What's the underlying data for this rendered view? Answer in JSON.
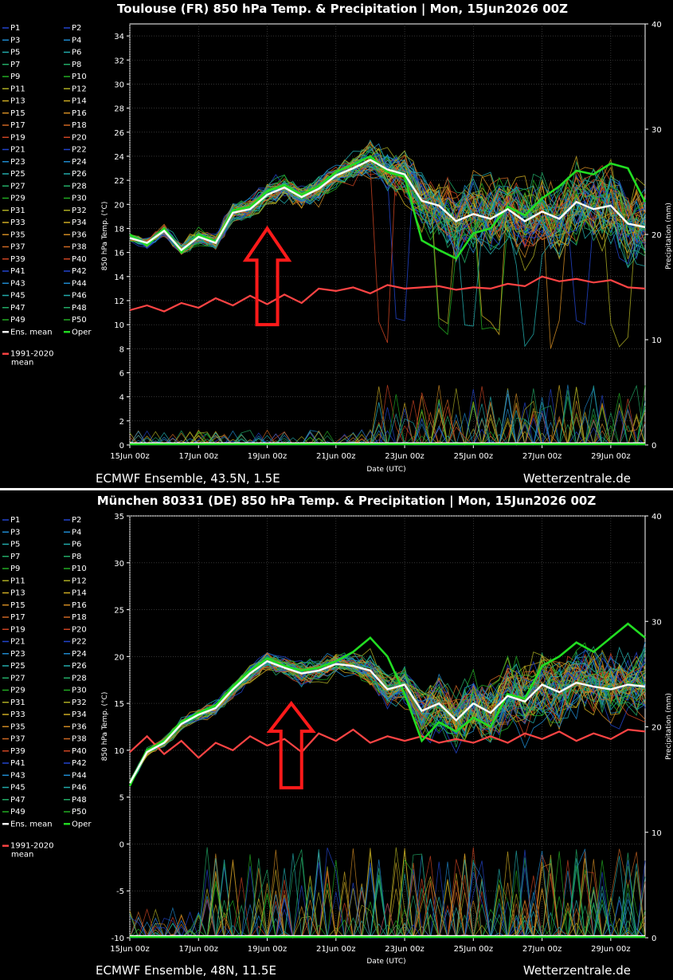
{
  "chart_data": [
    {
      "type": "line",
      "title": "Toulouse  (FR)  850 hPa Temp. & Precipitation | Mon, 15Jun2026 00Z",
      "xlabel": "Date (UTC)",
      "ylabel": "850 hPa Temp. (°C)",
      "y2label": "Precipitation (mm)",
      "ylim": [
        0,
        35
      ],
      "y2lim": [
        0,
        40
      ],
      "yticks": [
        0,
        2,
        4,
        6,
        8,
        10,
        12,
        14,
        16,
        18,
        20,
        22,
        24,
        26,
        28,
        30,
        32,
        34
      ],
      "y2ticks": [
        0,
        10,
        20,
        30,
        40
      ],
      "x_tick_labels": [
        "15Jun 00z",
        "17Jun 00z",
        "19Jun 00z",
        "21Jun 00z",
        "23Jun 00z",
        "25Jun 00z",
        "27Jun 00z",
        "29Jun 00z"
      ],
      "x_days": [
        0,
        15
      ],
      "footer_left": "ECMWF Ensemble, 43.5N, 1.5E",
      "footer_right": "Wetterzentrale.de",
      "annotation": {
        "type": "arrow-up",
        "color": "#ff1a1a",
        "x_day": 4.0,
        "y_from": 10,
        "y_to": 18
      },
      "members": {
        "count": 50,
        "spread": 1.0,
        "late_spread": 3.5,
        "drop_mean": 8,
        "drop_chance": 0.18
      },
      "series": [
        {
          "name": "Ens. mean",
          "color": "#ffffff",
          "x": [
            0,
            0.5,
            1,
            1.5,
            2,
            2.5,
            3,
            3.5,
            4,
            4.5,
            5,
            5.5,
            6,
            6.5,
            7,
            7.5,
            8,
            8.5,
            9,
            9.5,
            10,
            10.5,
            11,
            11.5,
            12,
            12.5,
            13,
            13.5,
            14,
            14.5,
            15
          ],
          "values": [
            17.2,
            16.8,
            17.8,
            16.2,
            17.3,
            16.8,
            19.3,
            19.6,
            20.8,
            21.4,
            20.6,
            21.3,
            22.4,
            23.0,
            23.7,
            22.9,
            22.5,
            20.3,
            19.9,
            18.6,
            19.2,
            18.8,
            19.6,
            18.6,
            19.4,
            18.8,
            20.2,
            19.6,
            19.9,
            18.4,
            18.1
          ]
        },
        {
          "name": "Oper",
          "color": "#22dd22",
          "x": [
            0,
            0.5,
            1,
            1.5,
            2,
            2.5,
            3,
            3.5,
            4,
            4.5,
            5,
            5.5,
            6,
            6.5,
            7,
            7.5,
            8,
            8.5,
            9,
            9.5,
            10,
            10.5,
            11,
            11.5,
            12,
            12.5,
            13,
            13.5,
            14,
            14.5,
            15
          ],
          "values": [
            17.5,
            16.6,
            18.0,
            16.0,
            17.5,
            16.9,
            19.5,
            19.8,
            21.1,
            21.6,
            20.8,
            21.5,
            22.7,
            23.3,
            24.0,
            22.7,
            22.3,
            17.0,
            16.2,
            15.5,
            17.6,
            18.0,
            19.8,
            19.1,
            20.5,
            21.5,
            22.8,
            22.5,
            23.4,
            23.0,
            20.2
          ]
        },
        {
          "name": "1991-2020 mean",
          "color": "#ff4444",
          "x": [
            0,
            0.5,
            1,
            1.5,
            2,
            2.5,
            3,
            3.5,
            4,
            4.5,
            5,
            5.5,
            6,
            6.5,
            7,
            7.5,
            8,
            8.5,
            9,
            9.5,
            10,
            10.5,
            11,
            11.5,
            12,
            12.5,
            13,
            13.5,
            14,
            14.5,
            15
          ],
          "values": [
            11.2,
            11.6,
            11.1,
            11.8,
            11.4,
            12.2,
            11.6,
            12.4,
            11.7,
            12.5,
            11.8,
            13.0,
            12.8,
            13.1,
            12.6,
            13.3,
            13.0,
            13.1,
            13.2,
            12.9,
            13.1,
            13.0,
            13.4,
            13.2,
            14.0,
            13.6,
            13.8,
            13.5,
            13.7,
            13.1,
            13.0
          ]
        }
      ]
    },
    {
      "type": "line",
      "title": "München 80331 (DE)  850 hPa Temp. & Precipitation | Mon, 15Jun2026 00Z",
      "xlabel": "Date (UTC)",
      "ylabel": "850 hPa Temp. (°C)",
      "y2label": "Precipitation (mm)",
      "ylim": [
        -10,
        35
      ],
      "y2lim": [
        0,
        40
      ],
      "yticks": [
        -10,
        -5,
        0,
        5,
        10,
        15,
        20,
        25,
        30,
        35
      ],
      "y2ticks": [
        0,
        10,
        20,
        30,
        40
      ],
      "x_tick_labels": [
        "15Jun 00z",
        "17Jun 00z",
        "19Jun 00z",
        "21Jun 00z",
        "23Jun 00z",
        "25Jun 00z",
        "27Jun 00z",
        "29Jun 00z"
      ],
      "x_days": [
        0,
        15
      ],
      "footer_left": "ECMWF Ensemble, 48N, 11.5E",
      "footer_right": "Wetterzentrale.de",
      "annotation": {
        "type": "arrow-up",
        "color": "#ff1a1a",
        "x_day": 4.7,
        "y_from": 6,
        "y_to": 15
      },
      "members": {
        "count": 50,
        "spread": 1.0,
        "late_spread": 4.0,
        "drop_mean": 0,
        "drop_chance": 0
      },
      "series": [
        {
          "name": "Ens. mean",
          "color": "#ffffff",
          "x": [
            0,
            0.5,
            1,
            1.5,
            2,
            2.5,
            3,
            3.5,
            4,
            4.5,
            5,
            5.5,
            6,
            6.5,
            7,
            7.5,
            8,
            8.5,
            9,
            9.5,
            10,
            10.5,
            11,
            11.5,
            12,
            12.5,
            13,
            13.5,
            14,
            14.5,
            15
          ],
          "values": [
            6.5,
            9.8,
            10.8,
            12.8,
            13.8,
            14.5,
            16.5,
            18.2,
            19.5,
            18.8,
            18.2,
            18.5,
            19.2,
            19.0,
            18.5,
            16.5,
            17.0,
            14.2,
            15.0,
            13.2,
            15.0,
            14.0,
            15.8,
            15.2,
            17.0,
            16.2,
            17.2,
            16.8,
            16.5,
            17.0,
            16.8
          ]
        },
        {
          "name": "Oper",
          "color": "#22dd22",
          "x": [
            0,
            0.5,
            1,
            1.5,
            2,
            2.5,
            3,
            3.5,
            4,
            4.5,
            5,
            5.5,
            6,
            6.5,
            7,
            7.5,
            8,
            8.5,
            9,
            9.5,
            10,
            10.5,
            11,
            11.5,
            12,
            12.5,
            13,
            13.5,
            14,
            14.5,
            15
          ],
          "values": [
            6.2,
            10.0,
            11.0,
            13.0,
            14.0,
            14.8,
            16.8,
            18.5,
            19.8,
            19.0,
            18.5,
            18.8,
            19.5,
            20.5,
            22.0,
            20.0,
            16.0,
            11.0,
            13.0,
            12.0,
            13.5,
            12.5,
            16.0,
            15.5,
            19.0,
            20.0,
            21.5,
            20.5,
            22.0,
            23.5,
            22.0
          ]
        },
        {
          "name": "1991-2020 mean",
          "color": "#ff4444",
          "x": [
            0,
            0.5,
            1,
            1.5,
            2,
            2.5,
            3,
            3.5,
            4,
            4.5,
            5,
            5.5,
            6,
            6.5,
            7,
            7.5,
            8,
            8.5,
            9,
            9.5,
            10,
            10.5,
            11,
            11.5,
            12,
            12.5,
            13,
            13.5,
            14,
            14.5,
            15
          ],
          "values": [
            9.8,
            11.5,
            9.6,
            11.0,
            9.2,
            10.8,
            10.0,
            11.5,
            10.5,
            11.2,
            9.8,
            11.8,
            11.0,
            12.2,
            10.8,
            11.5,
            11.0,
            11.5,
            10.8,
            11.2,
            10.8,
            11.5,
            10.8,
            11.8,
            11.2,
            12.0,
            11.0,
            11.8,
            11.2,
            12.2,
            12.0
          ]
        }
      ]
    }
  ],
  "legend": {
    "left": [
      "P1",
      "P3",
      "P5",
      "P7",
      "P9",
      "P11",
      "P13",
      "P15",
      "P17",
      "P19",
      "P21",
      "P23",
      "P25",
      "P27",
      "P29",
      "P31",
      "P33",
      "P35",
      "P37",
      "P39",
      "P41",
      "P43",
      "P45",
      "P47",
      "P49",
      "Ens. mean",
      "1991-2020",
      "mean"
    ],
    "right": [
      "P2",
      "P4",
      "P6",
      "P8",
      "P10",
      "P12",
      "P14",
      "P16",
      "P18",
      "P20",
      "P22",
      "P24",
      "P26",
      "P28",
      "P30",
      "P32",
      "P34",
      "P36",
      "P38",
      "P40",
      "P42",
      "P44",
      "P46",
      "P48",
      "P50",
      "Oper"
    ],
    "colors": [
      "#2244cc",
      "#1e88cc",
      "#22aaaa",
      "#22aa66",
      "#22aa22",
      "#aaaa22",
      "#ccaa22",
      "#cc8822",
      "#cc6622",
      "#cc4422",
      "#2244cc",
      "#1e88cc",
      "#22aaaa",
      "#22aa66",
      "#22aa22",
      "#aaaa22",
      "#ccaa22",
      "#cc8822",
      "#cc6622",
      "#cc4422",
      "#2244cc",
      "#1e88cc",
      "#22aaaa",
      "#22aa66",
      "#22aa22"
    ],
    "mean_color": "#ffffff",
    "oper_color": "#22dd22",
    "clim_color": "#ff4444"
  }
}
